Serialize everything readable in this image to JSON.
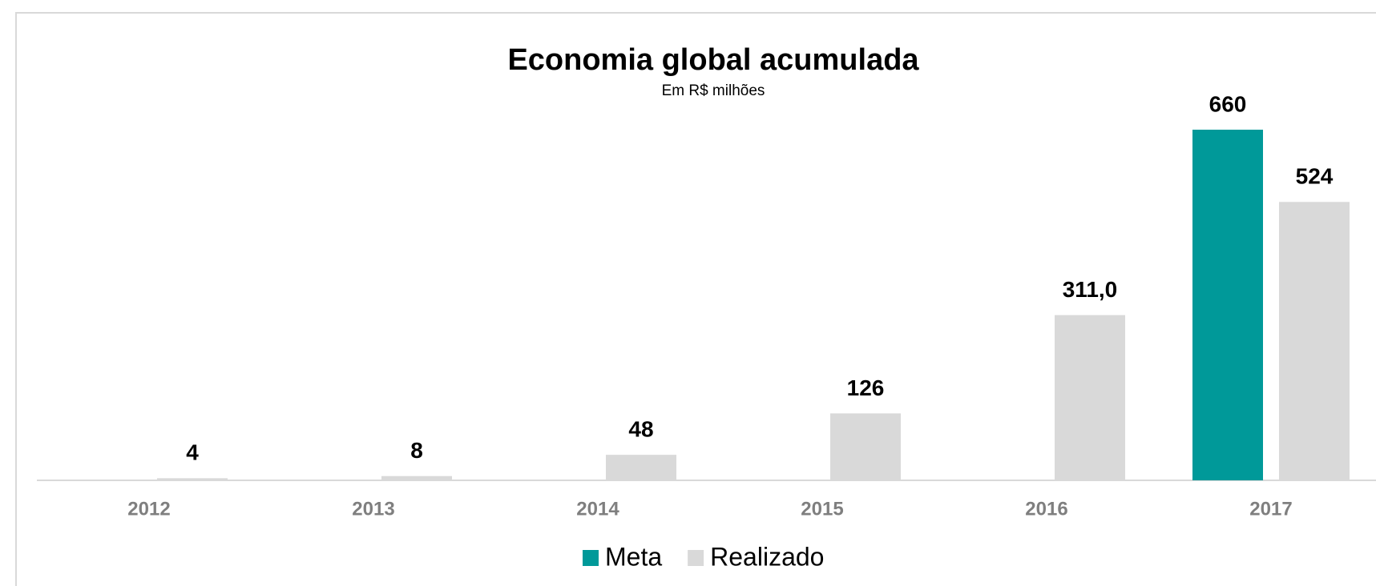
{
  "chart_data": {
    "type": "bar",
    "title": "Economia global acumulada",
    "subtitle": "Em R$ milhões",
    "categories": [
      "2012",
      "2013",
      "2014",
      "2015",
      "2016",
      "2017"
    ],
    "series": [
      {
        "name": "Meta",
        "color": "#009999",
        "values": [
          null,
          null,
          null,
          null,
          null,
          660
        ]
      },
      {
        "name": "Realizado",
        "color": "#d9d9d9",
        "values": [
          4,
          8,
          48,
          126,
          311.0,
          524
        ],
        "value_labels": [
          "4",
          "8",
          "48",
          "126",
          "311,0",
          "524"
        ]
      }
    ],
    "ylim": [
      0,
      660
    ],
    "legend": "bottom"
  }
}
